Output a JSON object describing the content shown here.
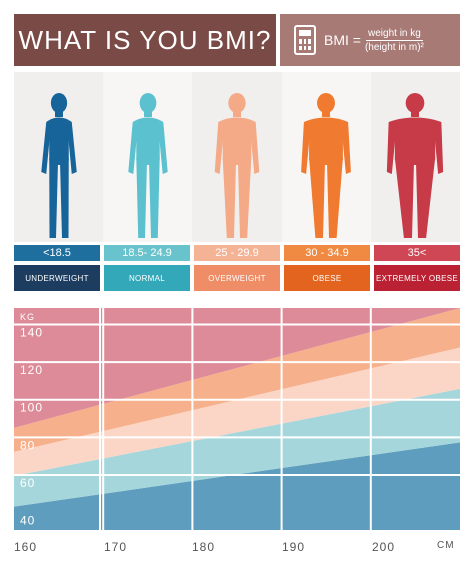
{
  "header": {
    "title": "WHAT IS YOU BMI?",
    "bmi_label": "BMI =",
    "numerator": "weight in kg",
    "denominator": "(height in m)²"
  },
  "figures": [
    {
      "color": "#17649a"
    },
    {
      "color": "#5cc1cf"
    },
    {
      "color": "#f4a987"
    },
    {
      "color": "#ef7a30"
    },
    {
      "color": "#c73a48"
    }
  ],
  "categories": [
    {
      "range": "<18.5",
      "label": "UNDERWEIGHT",
      "range_color": "#1f6f9e",
      "label_color": "#1c3d60"
    },
    {
      "range": "18.5- 24.9",
      "label": "NORMAL",
      "range_color": "#68c3cd",
      "label_color": "#33a8b8"
    },
    {
      "range": "25 - 29.9",
      "label": "OVERWEIGHT",
      "range_color": "#f5b396",
      "label_color": "#ef8d66"
    },
    {
      "range": "30 - 34.9",
      "label": "OBESE",
      "range_color": "#f08a43",
      "label_color": "#e3641e"
    },
    {
      "range": "35<",
      "label": "EXTREMELY OBESE",
      "range_color": "#cf4654",
      "label_color": "#ba2233"
    }
  ],
  "chart_data": {
    "type": "area",
    "ylabel": "KG",
    "xlabel": "CM",
    "x_ticks": [
      "160",
      "170",
      "180",
      "190",
      "200"
    ],
    "y_ticks": [
      "40",
      "60",
      "80",
      "100",
      "120",
      "140"
    ],
    "xlim": [
      160,
      210
    ],
    "ylim": [
      35,
      153
    ],
    "bands": [
      {
        "name": "underweight",
        "color": "#5e9dbd",
        "lower": [
          35,
          35
        ],
        "upper": [
          47.4,
          81.6
        ]
      },
      {
        "name": "normal",
        "color": "#a5d6dc",
        "lower": [
          47.4,
          81.6
        ],
        "upper": [
          63.8,
          110.0
        ]
      },
      {
        "name": "overweight",
        "color": "#fbd6c6",
        "lower": [
          63.8,
          110.0
        ],
        "upper": [
          76.5,
          132.0
        ]
      },
      {
        "name": "obese",
        "color": "#f6b08b",
        "lower": [
          76.5,
          132.0
        ],
        "upper": [
          89.3,
          153
        ]
      },
      {
        "name": "extremely obese",
        "color": "#dd8b98",
        "lower": [
          89.3,
          153
        ],
        "upper": [
          153,
          153
        ]
      }
    ]
  },
  "x_unit": "CM",
  "y_unit": "KG"
}
